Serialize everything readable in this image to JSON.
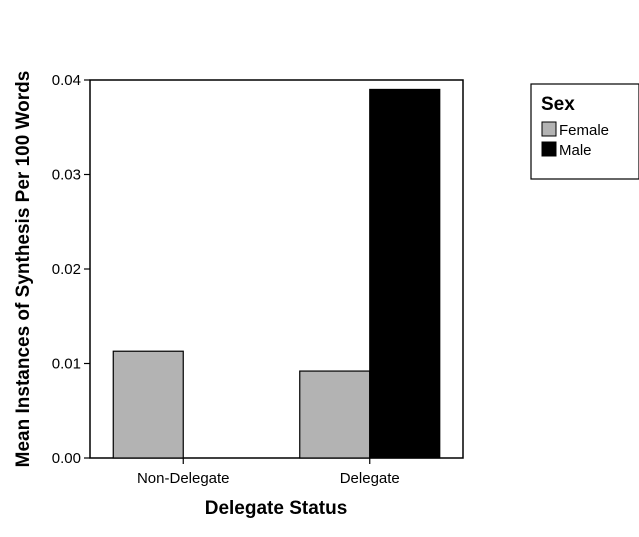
{
  "chart_data": {
    "type": "bar",
    "title": "",
    "xlabel": "Delegate Status",
    "ylabel": "Mean Instances of Synthesis Per 100 Words",
    "categories": [
      "Non-Delegate",
      "Delegate"
    ],
    "series": [
      {
        "name": "Female",
        "color": "#b3b3b3",
        "values": [
          0.0113,
          0.0092
        ]
      },
      {
        "name": "Male",
        "color": "#000000",
        "values": [
          null,
          0.039
        ]
      }
    ],
    "ylim": [
      0,
      0.04
    ],
    "yticks": [
      "0.00",
      "0.01",
      "0.02",
      "0.03",
      "0.04"
    ],
    "grid": false,
    "legend": {
      "title": "Sex",
      "placement": "right"
    }
  }
}
